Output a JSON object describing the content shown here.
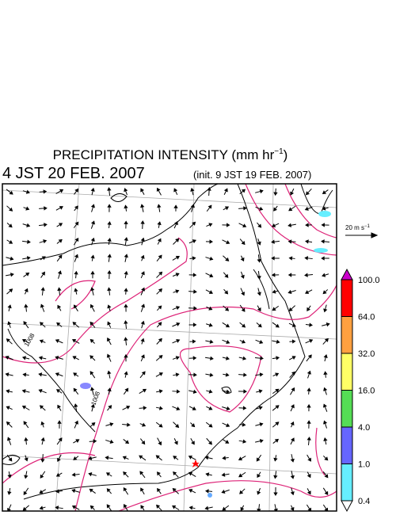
{
  "header": {
    "title": "PRECIPITATION INTENSITY (mm hr",
    "title_exponent": "−1",
    "title_close": ")",
    "valid_time": "4 JST 20 FEB. 2007",
    "init_time": "(init. 9 JST 19 FEB. 2007)"
  },
  "wind_scale": {
    "label": "20 m s",
    "exponent": "−1"
  },
  "contour_labels": [
    "1008",
    "1008"
  ],
  "colorbar": {
    "labels": [
      "100.0",
      "64.0",
      "32.0",
      "16.0",
      "4.0",
      "1.0",
      "0.4"
    ],
    "colors": [
      "#cc00cc",
      "#ff0000",
      "#ffa040",
      "#ffff66",
      "#55dd55",
      "#6666ff",
      "#66eeff",
      "#ffffff"
    ]
  }
}
